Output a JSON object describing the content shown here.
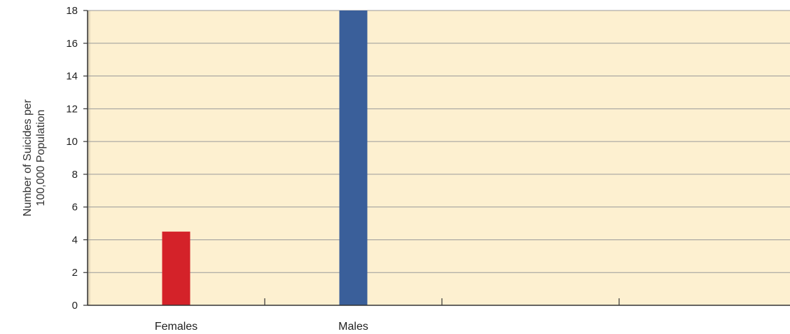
{
  "chart_data": {
    "type": "bar",
    "title": "",
    "xlabel": "",
    "ylabel_lines": [
      "Number of Suicides per",
      "100,000 Population"
    ],
    "categories": [
      "Females",
      "Males"
    ],
    "values": [
      4.5,
      18
    ],
    "bar_colors": [
      "#d42229",
      "#3a5f9a"
    ],
    "ylim": [
      0,
      18
    ],
    "yticks": [
      0,
      2,
      4,
      6,
      8,
      10,
      12,
      14,
      16,
      18
    ],
    "grid": true,
    "legend": "none",
    "plot_background": "#fdf0d0"
  }
}
